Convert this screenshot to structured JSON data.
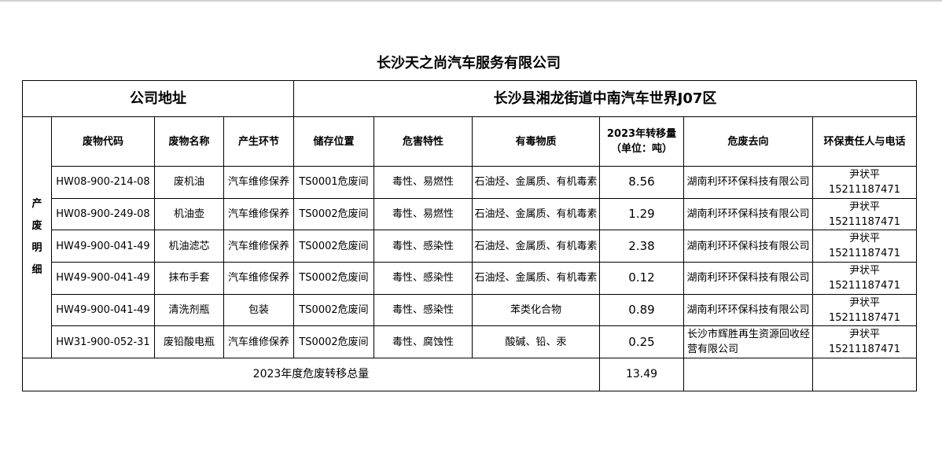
{
  "title": "长沙天之尚汽车服务有限公司",
  "address_label": "公司地址",
  "address_value": "长沙县湘龙街道中南汽车世界J07区",
  "side_label": "产废明细",
  "headers": [
    "废物代码",
    "废物名称",
    "产生环节",
    "储存位置",
    "危害特性",
    "有毒物质",
    "2023年转移量（单位：吨）",
    "危废去向",
    "环保责任人与电话"
  ],
  "rows": [
    {
      "code": "HW08-900-214-08",
      "name": "废机油",
      "stage": "汽车维修保养",
      "storage": "TS0001危废间",
      "hazard": "毒性、易燃性",
      "toxic": "石油烃、金属质、有机毒素",
      "amount": "8.56",
      "dest": "湖南利环环保科技有限公司",
      "contact": "尹状平",
      "phone": "15211187471"
    },
    {
      "code": "HW08-900-249-08",
      "name": "机油壶",
      "stage": "汽车维修保养",
      "storage": "TS0002危废间",
      "hazard": "毒性、易燃性",
      "toxic": "石油烃、金属质、有机毒素",
      "amount": "1.29",
      "dest": "湖南利环环保科技有限公司",
      "contact": "尹状平",
      "phone": "15211187471"
    },
    {
      "code": "HW49-900-041-49",
      "name": "机油滤芯",
      "stage": "汽车维修保养",
      "storage": "TS0002危废间",
      "hazard": "毒性、感染性",
      "toxic": "石油烃、金属质、有机毒素",
      "amount": "2.38",
      "dest": "湖南利环环保科技有限公司",
      "contact": "尹状平",
      "phone": "15211187471"
    },
    {
      "code": "HW49-900-041-49",
      "name": "抹布手套",
      "stage": "汽车维修保养",
      "storage": "TS0002危废间",
      "hazard": "毒性、感染性",
      "toxic": "石油烃、金属质、有机毒素",
      "amount": "0.12",
      "dest": "湖南利环环保科技有限公司",
      "contact": "尹状平",
      "phone": "15211187471"
    },
    {
      "code": "HW49-900-041-49",
      "name": "清洗剂瓶",
      "stage": "包装",
      "storage": "TS0002危废间",
      "hazard": "毒性、感染性",
      "toxic": "苯类化合物",
      "amount": "0.89",
      "dest": "湖南利环环保科技有限公司",
      "contact": "尹状平",
      "phone": "15211187471"
    },
    {
      "code": "HW31-900-052-31",
      "name": "废铅酸电瓶",
      "stage": "汽车维修保养",
      "storage": "TS0002危废间",
      "hazard": "毒性、腐蚀性",
      "toxic": "酸碱、铅、汞",
      "amount": "0.25",
      "dest": "长沙市辉胜再生资源回收经营有限公司",
      "contact": "尹状平",
      "phone": "15211187471"
    }
  ],
  "total_label": "2023年度危废转移总量",
  "total_value": "13.49"
}
